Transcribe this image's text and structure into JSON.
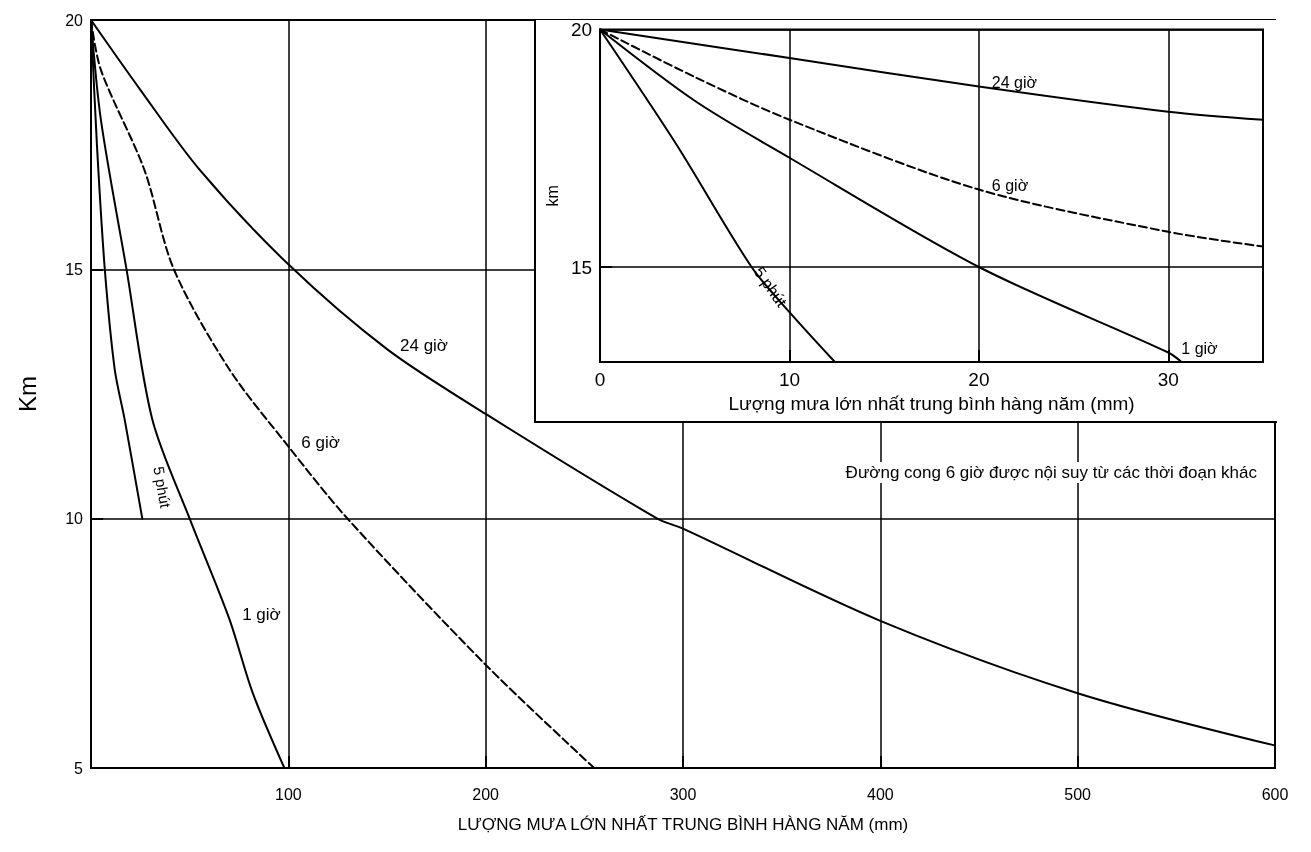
{
  "chart_data": [
    {
      "type": "line",
      "xlabel": "LƯỢNG MƯA LỚN NHẤT TRUNG BÌNH HÀNG NĂM (mm)",
      "ylabel": "Km",
      "xlim": [
        0,
        600
      ],
      "ylim": [
        5,
        20
      ],
      "xticks": [
        {
          "value": 0,
          "label": null
        },
        100,
        200,
        300,
        400,
        500,
        600
      ],
      "yticks": [
        5,
        10,
        15,
        20
      ],
      "grid": true,
      "marker": "none",
      "series": [
        {
          "name": "24 giờ",
          "color": "#000000",
          "line_style": "solid",
          "x": [
            0,
            25,
            55,
            100,
            150,
            200,
            287,
            300,
            400,
            500,
            600
          ],
          "values": [
            20,
            18.6,
            17,
            15.1,
            13.4,
            12.1,
            10,
            9.8,
            7.95,
            6.5,
            5.45
          ]
        },
        {
          "name": "6 giờ",
          "color": "#000000",
          "line_style": "dashed",
          "x": [
            0,
            5,
            27,
            42,
            70,
            100,
            130,
            200,
            255
          ],
          "values": [
            20,
            19,
            17,
            15,
            13,
            11.45,
            10,
            7.07,
            5
          ]
        },
        {
          "name": "1 giờ",
          "color": "#000000",
          "line_style": "solid",
          "x": [
            0,
            5,
            18,
            31,
            50,
            70,
            82,
            98
          ],
          "values": [
            20,
            18,
            15,
            12,
            10,
            8,
            6.5,
            5
          ]
        },
        {
          "name": "5 phút",
          "color": "#000000",
          "line_style": "solid",
          "x": [
            0,
            3,
            7,
            12,
            17,
            26
          ],
          "values": [
            20,
            17.5,
            15,
            13,
            12,
            10
          ]
        }
      ],
      "annotations": [
        "Đường cong 6 giờ được nội suy từ các thời đoạn khác"
      ]
    },
    {
      "type": "line",
      "xlabel": "Lượng mưa lớn nhất trung bình hàng năm (mm)",
      "ylabel": "km",
      "xlim": [
        0,
        35
      ],
      "ylim": [
        13,
        20
      ],
      "xticks": [
        0,
        10,
        20,
        30
      ],
      "yticks": [
        15,
        20
      ],
      "grid": true,
      "marker": "none",
      "series": [
        {
          "name": "24 giờ",
          "color": "#000000",
          "line_style": "solid",
          "x": [
            0,
            10,
            20,
            30,
            35
          ],
          "values": [
            20,
            19.4,
            18.8,
            18.27,
            18.1
          ]
        },
        {
          "name": "6 giờ",
          "color": "#000000",
          "line_style": "dashed",
          "x": [
            0,
            5,
            10,
            20,
            30,
            35
          ],
          "values": [
            20,
            19,
            18.1,
            16.63,
            15.74,
            15.43
          ]
        },
        {
          "name": "1 giờ",
          "color": "#000000",
          "line_style": "solid",
          "x": [
            0,
            5,
            10,
            20,
            30,
            30.7
          ],
          "values": [
            20,
            18.5,
            17.3,
            15,
            13.2,
            13
          ]
        },
        {
          "name": "5 phút",
          "color": "#000000",
          "line_style": "solid",
          "x": [
            0,
            4,
            8,
            10,
            12.4
          ],
          "values": [
            20,
            17.6,
            15,
            14.05,
            13
          ]
        }
      ]
    }
  ]
}
